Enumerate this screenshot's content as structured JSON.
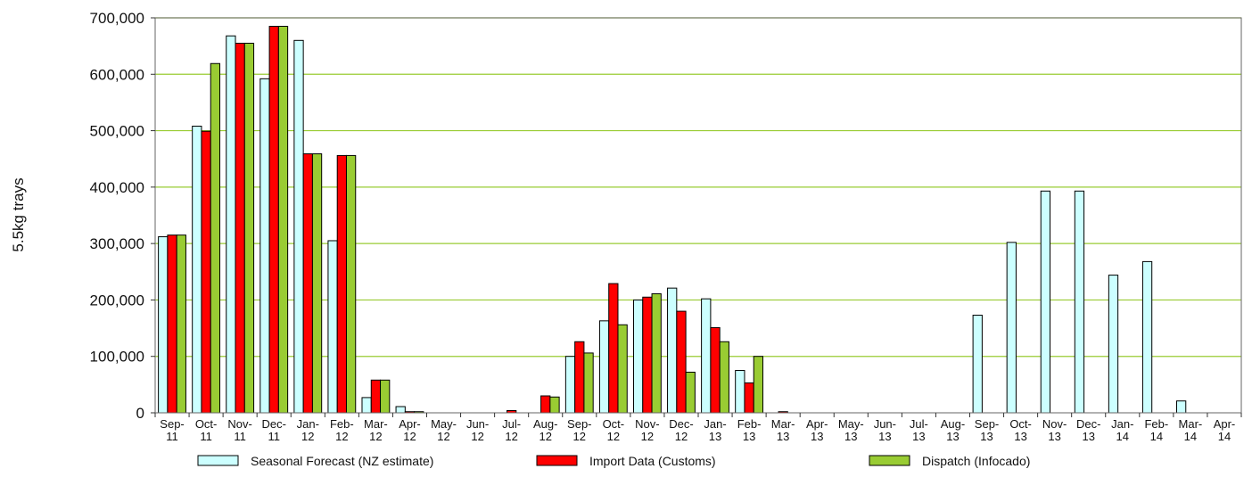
{
  "chart_data": {
    "type": "bar",
    "ylabel": "5.5kg trays",
    "ylim": [
      0,
      700000
    ],
    "yticks": [
      0,
      100000,
      200000,
      300000,
      400000,
      500000,
      600000,
      700000
    ],
    "ytick_labels": [
      "0",
      "100,000",
      "200,000",
      "300,000",
      "400,000",
      "500,000",
      "600,000",
      "700,000"
    ],
    "grid": "horizontal",
    "legend_position": "bottom",
    "categories": [
      [
        "Sep-",
        "11"
      ],
      [
        "Oct-",
        "11"
      ],
      [
        "Nov-",
        "11"
      ],
      [
        "Dec-",
        "11"
      ],
      [
        "Jan-",
        "12"
      ],
      [
        "Feb-",
        "12"
      ],
      [
        "Mar-",
        "12"
      ],
      [
        "Apr-",
        "12"
      ],
      [
        "May-",
        "12"
      ],
      [
        "Jun-",
        "12"
      ],
      [
        "Jul-",
        "12"
      ],
      [
        "Aug-",
        "12"
      ],
      [
        "Sep-",
        "12"
      ],
      [
        "Oct-",
        "12"
      ],
      [
        "Nov-",
        "12"
      ],
      [
        "Dec-",
        "12"
      ],
      [
        "Jan-",
        "13"
      ],
      [
        "Feb-",
        "13"
      ],
      [
        "Mar-",
        "13"
      ],
      [
        "Apr-",
        "13"
      ],
      [
        "May-",
        "13"
      ],
      [
        "Jun-",
        "13"
      ],
      [
        "Jul-",
        "13"
      ],
      [
        "Aug-",
        "13"
      ],
      [
        "Sep-",
        "13"
      ],
      [
        "Oct-",
        "13"
      ],
      [
        "Nov-",
        "13"
      ],
      [
        "Dec-",
        "13"
      ],
      [
        "Jan-",
        "14"
      ],
      [
        "Feb-",
        "14"
      ],
      [
        "Mar-",
        "14"
      ],
      [
        "Apr-",
        "14"
      ]
    ],
    "series": [
      {
        "name": "Seasonal Forecast (NZ estimate)",
        "color": "#ccffff",
        "values": [
          312000,
          508000,
          668000,
          592000,
          660000,
          305000,
          27000,
          11000,
          0,
          0,
          0,
          0,
          100000,
          163000,
          200000,
          221000,
          202000,
          75000,
          0,
          0,
          0,
          0,
          0,
          0,
          173000,
          302000,
          393000,
          393000,
          244000,
          268000,
          21000,
          0
        ]
      },
      {
        "name": "Import Data (Customs)",
        "color": "#ff0000",
        "values": [
          315000,
          499000,
          655000,
          685000,
          459000,
          456000,
          58000,
          2000,
          0,
          0,
          4000,
          30000,
          126000,
          229000,
          205000,
          180000,
          151000,
          53000,
          2000,
          0,
          0,
          0,
          0,
          0,
          0,
          0,
          0,
          0,
          0,
          0,
          0,
          0
        ]
      },
      {
        "name": "Dispatch (Infocado)",
        "color": "#99cc33",
        "values": [
          315000,
          619000,
          655000,
          685000,
          459000,
          456000,
          58000,
          2000,
          0,
          0,
          0,
          28000,
          106000,
          156000,
          211000,
          72000,
          126000,
          100000,
          0,
          0,
          0,
          0,
          0,
          0,
          0,
          0,
          0,
          0,
          0,
          0,
          0,
          0
        ]
      }
    ]
  }
}
